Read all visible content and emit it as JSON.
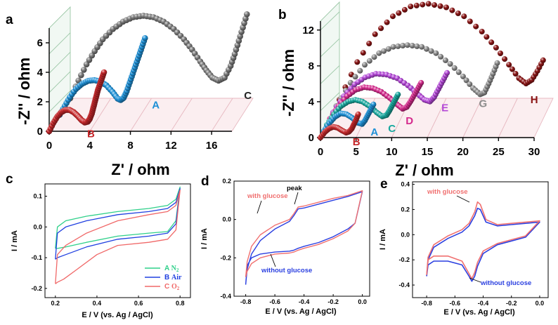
{
  "colors": {
    "A": "#1e90d6",
    "B": "#c6272a",
    "C_eis": "#7a7a7a",
    "C_eis_label": "#222222",
    "C_teal": "#18a89e",
    "D": "#d42a8c",
    "E": "#b347d6",
    "G": "#8c8c8c",
    "H": "#8a1515",
    "cv_A": "#2fd08a",
    "cv_B": "#2040e0",
    "cv_C": "#f06868",
    "cv_without": "#2a3fe0",
    "cv_with": "#f07070"
  },
  "chart_data": [
    {
      "panel": "a",
      "type": "line",
      "title": "",
      "xlabel": "Z' / ohm",
      "ylabel": "-Z'' / ohm",
      "xlim": [
        0,
        18
      ],
      "ylim": [
        0,
        7
      ],
      "xticks": [
        "0",
        "4",
        "8",
        "12",
        "16"
      ],
      "yticks": [
        "0",
        "2",
        "4",
        "6"
      ],
      "series": [
        {
          "name": "B",
          "color_key": "B",
          "depth": 0,
          "x": [
            0.0,
            0.4,
            0.8,
            1.2,
            1.6,
            2.0,
            2.4,
            2.8,
            3.2,
            3.5,
            3.8,
            4.0,
            4.2,
            4.35,
            4.5,
            4.65,
            4.8,
            5.0,
            5.2,
            5.4
          ],
          "y": [
            0.0,
            0.55,
            1.0,
            1.3,
            1.45,
            1.45,
            1.3,
            1.05,
            0.75,
            0.6,
            0.65,
            0.85,
            1.2,
            1.6,
            2.0,
            2.4,
            2.8,
            3.2,
            3.6,
            4.0
          ]
        },
        {
          "name": "A",
          "color_key": "A",
          "depth": 1,
          "x": [
            0.0,
            0.5,
            1.0,
            1.6,
            2.2,
            2.8,
            3.4,
            4.0,
            4.6,
            5.2,
            5.7,
            6.0,
            6.3,
            6.6,
            6.9,
            7.2,
            7.5,
            7.8,
            8.1,
            8.4
          ],
          "y": [
            0.0,
            0.6,
            1.2,
            1.75,
            2.1,
            2.3,
            2.35,
            2.25,
            2.0,
            1.55,
            1.1,
            1.0,
            1.15,
            1.6,
            2.2,
            2.8,
            3.4,
            4.0,
            4.6,
            5.2
          ]
        },
        {
          "name": "C",
          "color_key": "C_eis",
          "label_color_key": "C_eis_label",
          "depth": 2,
          "x": [
            0.0,
            0.8,
            1.6,
            2.4,
            3.2,
            4.2,
            5.2,
            6.2,
            7.2,
            8.2,
            9.2,
            10.2,
            11.2,
            12.0,
            12.8,
            13.4,
            14.0,
            14.6,
            15.2,
            15.8,
            16.2,
            16.6,
            17.0,
            17.4
          ],
          "y": [
            0.0,
            1.2,
            2.3,
            3.2,
            4.0,
            4.7,
            5.2,
            5.5,
            5.6,
            5.5,
            5.2,
            4.7,
            4.0,
            3.3,
            2.5,
            1.9,
            1.4,
            1.2,
            1.4,
            2.2,
            3.0,
            3.9,
            4.8,
            5.7
          ]
        }
      ]
    },
    {
      "panel": "b",
      "type": "line",
      "title": "",
      "xlabel": "Z' / ohm",
      "ylabel": "-Z'' / ohm",
      "xlim": [
        0,
        30
      ],
      "ylim": [
        0,
        13
      ],
      "xticks": [
        "0",
        "5",
        "10",
        "15",
        "20",
        "25",
        "30"
      ],
      "yticks": [
        "0",
        "4",
        "8",
        "12"
      ],
      "series": [
        {
          "name": "B",
          "color_key": "B",
          "depth": 0,
          "x": [
            0.0,
            0.6,
            1.2,
            1.8,
            2.4,
            3.0,
            3.6,
            4.0,
            4.4,
            4.7,
            5.0,
            5.3
          ],
          "y": [
            0.0,
            0.6,
            1.0,
            1.2,
            1.1,
            0.8,
            0.55,
            0.65,
            1.0,
            1.5,
            2.0,
            2.6
          ]
        },
        {
          "name": "A",
          "color_key": "A",
          "depth": 1,
          "x": [
            0.0,
            0.8,
            1.6,
            2.4,
            3.2,
            4.0,
            4.8,
            5.4,
            5.8,
            6.2,
            6.6,
            7.0
          ],
          "y": [
            0.0,
            0.9,
            1.6,
            2.0,
            1.9,
            1.5,
            0.95,
            0.8,
            1.2,
            1.8,
            2.4,
            3.0
          ]
        },
        {
          "name": "C",
          "color_key": "C_teal",
          "depth": 2,
          "x": [
            0.0,
            1.0,
            2.0,
            3.0,
            4.0,
            5.0,
            6.0,
            7.0,
            7.8,
            8.4,
            8.8,
            9.2,
            9.6,
            10.0
          ],
          "y": [
            0.0,
            1.2,
            2.1,
            2.6,
            2.8,
            2.6,
            2.1,
            1.4,
            0.95,
            1.1,
            1.6,
            2.2,
            2.8,
            3.4
          ]
        },
        {
          "name": "D",
          "color_key": "D",
          "depth": 3,
          "x": [
            0.0,
            1.2,
            2.4,
            3.6,
            4.8,
            6.0,
            7.2,
            8.4,
            9.4,
            10.2,
            10.8,
            11.3,
            11.8,
            12.3,
            12.8
          ],
          "y": [
            0.0,
            1.4,
            2.5,
            3.2,
            3.5,
            3.4,
            3.0,
            2.3,
            1.6,
            1.1,
            1.3,
            1.9,
            2.6,
            3.3,
            4.0
          ]
        },
        {
          "name": "E",
          "color_key": "E",
          "depth": 4,
          "x": [
            0.0,
            1.5,
            3.0,
            4.5,
            6.0,
            7.5,
            9.0,
            10.5,
            11.8,
            12.8,
            13.6,
            14.2,
            14.8,
            15.4,
            16.0
          ],
          "y": [
            0.0,
            1.8,
            3.1,
            3.9,
            4.3,
            4.2,
            3.8,
            3.0,
            2.1,
            1.4,
            1.2,
            1.7,
            2.6,
            3.5,
            4.4
          ]
        },
        {
          "name": "G",
          "color_key": "G",
          "depth": 5,
          "x": [
            0.0,
            2.0,
            4.0,
            6.0,
            8.0,
            10.0,
            12.0,
            14.0,
            16.0,
            17.8,
            19.2,
            20.2,
            20.8,
            21.4,
            22.0,
            22.6
          ],
          "y": [
            0.0,
            2.6,
            4.6,
            5.9,
            6.6,
            6.8,
            6.6,
            5.9,
            4.7,
            3.3,
            2.0,
            1.3,
            1.5,
            2.5,
            3.6,
            4.8
          ]
        },
        {
          "name": "H",
          "color_key": "H",
          "depth": 6,
          "x": [
            0.0,
            2.5,
            5.0,
            7.5,
            10.0,
            12.5,
            15.0,
            17.5,
            20.0,
            22.0,
            23.8,
            25.2,
            26.2,
            27.0,
            27.8,
            28.6
          ],
          "y": [
            0.0,
            4.2,
            7.3,
            9.3,
            10.4,
            10.7,
            10.3,
            9.3,
            7.6,
            5.8,
            3.9,
            2.4,
            1.8,
            2.2,
            3.2,
            4.4
          ]
        }
      ]
    },
    {
      "panel": "c",
      "type": "line",
      "title": "",
      "xlabel": "E / V (vs. Ag / AgCl)",
      "ylabel": "I / mA",
      "xlim": [
        0.15,
        0.85
      ],
      "ylim": [
        -0.23,
        0.14
      ],
      "xticks": [
        "0.2",
        "0.4",
        "0.6",
        "0.8"
      ],
      "xtick_values": [
        0.2,
        0.4,
        0.6,
        0.8
      ],
      "yticks": [
        "0.1",
        "0.0",
        "-0.1",
        "-0.2"
      ],
      "ytick_values": [
        0.1,
        0.0,
        -0.1,
        -0.2
      ],
      "series": [
        {
          "name": "A N2",
          "legend_letter": "A",
          "legend_species": "N",
          "legend_sub": "2",
          "color_key": "cv_A",
          "x": [
            0.2,
            0.21,
            0.25,
            0.35,
            0.5,
            0.65,
            0.74,
            0.78,
            0.8,
            0.8,
            0.78,
            0.74,
            0.65,
            0.5,
            0.35,
            0.25,
            0.21,
            0.2
          ],
          "y": [
            -0.07,
            0.0,
            0.02,
            0.035,
            0.05,
            0.06,
            0.07,
            0.09,
            0.13,
            0.13,
            0.02,
            -0.015,
            -0.02,
            -0.03,
            -0.05,
            -0.065,
            -0.07,
            -0.07
          ]
        },
        {
          "name": "B Air",
          "legend_letter": "B",
          "legend_species": "Air",
          "legend_sub": "",
          "color_key": "cv_B",
          "x": [
            0.2,
            0.21,
            0.25,
            0.35,
            0.5,
            0.65,
            0.74,
            0.78,
            0.8,
            0.8,
            0.78,
            0.74,
            0.65,
            0.5,
            0.35,
            0.25,
            0.21,
            0.2
          ],
          "y": [
            -0.105,
            -0.02,
            0.0,
            0.02,
            0.04,
            0.05,
            0.06,
            0.08,
            0.125,
            0.125,
            0.01,
            -0.02,
            -0.03,
            -0.04,
            -0.065,
            -0.09,
            -0.1,
            -0.105
          ]
        },
        {
          "name": "C O2",
          "legend_letter": "C",
          "legend_species": "O",
          "legend_sub": "2",
          "color_key": "cv_C",
          "x": [
            0.2,
            0.21,
            0.25,
            0.35,
            0.5,
            0.65,
            0.74,
            0.78,
            0.8,
            0.8,
            0.78,
            0.74,
            0.65,
            0.5,
            0.4,
            0.3,
            0.24,
            0.21,
            0.2
          ],
          "y": [
            -0.185,
            -0.09,
            -0.06,
            -0.02,
            0.02,
            0.04,
            0.05,
            0.07,
            0.12,
            0.12,
            -0.01,
            -0.04,
            -0.05,
            -0.06,
            -0.09,
            -0.14,
            -0.17,
            -0.18,
            -0.185
          ]
        }
      ]
    },
    {
      "panel": "d",
      "type": "line",
      "title": "",
      "xlabel": "E / V (vs. Ag / AgCl)",
      "ylabel": "I / mA",
      "xlim": [
        -0.88,
        0.05
      ],
      "ylim": [
        -0.4,
        0.2
      ],
      "xticks": [
        "-0.8",
        "-0.6",
        "-0.4",
        "-0.2",
        "0.0"
      ],
      "xtick_values": [
        -0.8,
        -0.6,
        -0.4,
        -0.2,
        0.0
      ],
      "yticks": [
        "0.2",
        "0.0",
        "-0.2",
        "-0.4"
      ],
      "ytick_values": [
        0.2,
        0.0,
        -0.2,
        -0.4
      ],
      "annotations": [
        "peak",
        "with glucose",
        "without glucose"
      ],
      "series": [
        {
          "name": "without glucose",
          "color_key": "cv_without",
          "x": [
            -0.8,
            -0.79,
            -0.76,
            -0.7,
            -0.6,
            -0.5,
            -0.47,
            -0.44,
            -0.4,
            -0.3,
            -0.2,
            -0.1,
            -0.02,
            0.0,
            0.0,
            -0.05,
            -0.1,
            -0.2,
            -0.3,
            -0.4,
            -0.44,
            -0.47,
            -0.5,
            -0.6,
            -0.7,
            -0.76,
            -0.79,
            -0.8
          ],
          "y": [
            -0.34,
            -0.26,
            -0.18,
            -0.11,
            -0.05,
            -0.01,
            0.02,
            0.055,
            0.06,
            0.08,
            0.1,
            0.12,
            0.14,
            0.145,
            0.145,
            -0.02,
            -0.05,
            -0.09,
            -0.12,
            -0.14,
            -0.15,
            -0.16,
            -0.165,
            -0.17,
            -0.18,
            -0.2,
            -0.24,
            -0.34
          ]
        },
        {
          "name": "with glucose",
          "color_key": "cv_with",
          "x": [
            -0.8,
            -0.79,
            -0.76,
            -0.7,
            -0.6,
            -0.5,
            -0.47,
            -0.44,
            -0.4,
            -0.3,
            -0.2,
            -0.1,
            -0.02,
            0.0,
            0.0,
            -0.05,
            -0.1,
            -0.2,
            -0.3,
            -0.4,
            -0.44,
            -0.47,
            -0.5,
            -0.6,
            -0.7,
            -0.76,
            -0.79,
            -0.8
          ],
          "y": [
            -0.3,
            -0.22,
            -0.14,
            -0.08,
            -0.03,
            0.0,
            0.03,
            0.065,
            0.07,
            0.09,
            0.11,
            0.125,
            0.145,
            0.15,
            0.15,
            -0.02,
            -0.06,
            -0.1,
            -0.13,
            -0.15,
            -0.16,
            -0.17,
            -0.175,
            -0.18,
            -0.2,
            -0.23,
            -0.27,
            -0.3
          ]
        }
      ]
    },
    {
      "panel": "e",
      "type": "line",
      "title": "",
      "xlabel": "E / V (vs. Ag / AgCl)",
      "ylabel": "I / mA",
      "xlim": [
        -0.9,
        0.06
      ],
      "ylim": [
        -0.5,
        0.42
      ],
      "xticks": [
        "-0.8",
        "-0.6",
        "-0.4",
        "-0.2",
        "0.0"
      ],
      "xtick_values": [
        -0.8,
        -0.6,
        -0.4,
        -0.2,
        0.0
      ],
      "yticks": [
        "0.4",
        "0.2",
        "0.0",
        "-0.2",
        "-0.4"
      ],
      "ytick_values": [
        0.4,
        0.2,
        0.0,
        -0.2,
        -0.4
      ],
      "annotations": [
        "with glucose",
        "without glucose"
      ],
      "series": [
        {
          "name": "without glucose",
          "color_key": "cv_without",
          "x": [
            -0.8,
            -0.79,
            -0.75,
            -0.65,
            -0.55,
            -0.5,
            -0.46,
            -0.44,
            -0.42,
            -0.38,
            -0.3,
            -0.2,
            -0.1,
            0.0,
            0.0,
            -0.1,
            -0.2,
            -0.3,
            -0.4,
            -0.44,
            -0.46,
            -0.48,
            -0.5,
            -0.55,
            -0.65,
            -0.75,
            -0.79,
            -0.8
          ],
          "y": [
            -0.33,
            -0.2,
            -0.1,
            -0.03,
            0.02,
            0.07,
            0.15,
            0.21,
            0.2,
            0.1,
            0.07,
            0.08,
            0.09,
            0.1,
            0.1,
            -0.02,
            -0.05,
            -0.08,
            -0.15,
            -0.25,
            -0.33,
            -0.37,
            -0.33,
            -0.24,
            -0.21,
            -0.21,
            -0.24,
            -0.33
          ]
        },
        {
          "name": "with glucose",
          "color_key": "cv_with",
          "x": [
            -0.8,
            -0.79,
            -0.75,
            -0.65,
            -0.55,
            -0.5,
            -0.46,
            -0.44,
            -0.42,
            -0.38,
            -0.3,
            -0.2,
            -0.1,
            0.0,
            0.0,
            -0.1,
            -0.2,
            -0.3,
            -0.4,
            -0.44,
            -0.46,
            -0.48,
            -0.5,
            -0.55,
            -0.65,
            -0.75,
            -0.79,
            -0.8
          ],
          "y": [
            -0.32,
            -0.18,
            -0.08,
            -0.01,
            0.04,
            0.09,
            0.18,
            0.26,
            0.24,
            0.12,
            0.08,
            0.09,
            0.1,
            0.11,
            0.11,
            -0.01,
            -0.04,
            -0.07,
            -0.13,
            -0.22,
            -0.3,
            -0.35,
            -0.31,
            -0.21,
            -0.17,
            -0.17,
            -0.2,
            -0.32
          ]
        }
      ]
    }
  ]
}
